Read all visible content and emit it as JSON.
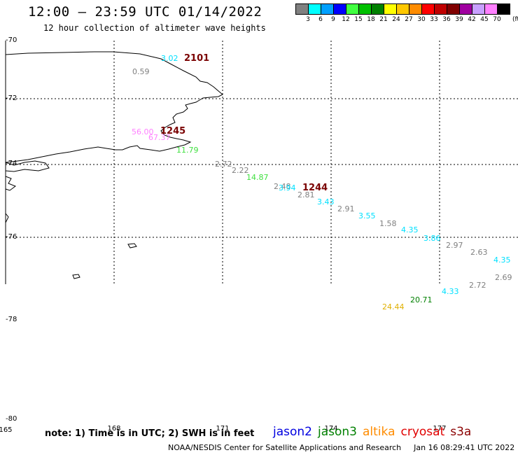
{
  "header": {
    "title": "12:00 – 23:59 UTC 01/14/2022",
    "subtitle": "12 hour collection of altimeter wave heights"
  },
  "legend": {
    "unit": "(ft)",
    "swatches": [
      {
        "color": "#808080",
        "label": "3"
      },
      {
        "color": "#00ffff",
        "label": "6"
      },
      {
        "color": "#00a0ff",
        "label": "9"
      },
      {
        "color": "#0000ff",
        "label": "12"
      },
      {
        "color": "#40ff40",
        "label": "15"
      },
      {
        "color": "#00c000",
        "label": "18"
      },
      {
        "color": "#008000",
        "label": "21"
      },
      {
        "color": "#ffff00",
        "label": "24"
      },
      {
        "color": "#ffc800",
        "label": "27"
      },
      {
        "color": "#ff8c00",
        "label": "30"
      },
      {
        "color": "#ff0000",
        "label": "33"
      },
      {
        "color": "#c00000",
        "label": "36"
      },
      {
        "color": "#800000",
        "label": "39"
      },
      {
        "color": "#a000a0",
        "label": "42"
      },
      {
        "color": "#c8a0ff",
        "label": "45"
      },
      {
        "color": "#ff80ff",
        "label": "70"
      },
      {
        "color": "#000000",
        "label": ""
      }
    ]
  },
  "axes": {
    "lat_labels": [
      "-70",
      "-72",
      "-74",
      "-76",
      "-78",
      "-80"
    ],
    "lon_labels": [
      "165",
      "168",
      "171",
      "174",
      "177"
    ]
  },
  "time_markers": [
    "2101",
    "1245",
    "1244"
  ],
  "observations": [
    {
      "value": "3.02",
      "color": "#00e0ff"
    },
    {
      "value": "0.59",
      "color": "#808080"
    },
    {
      "value": "56.00",
      "color": "#ff80ff"
    },
    {
      "value": "67.37",
      "color": "#ff80ff"
    },
    {
      "value": "11.79",
      "color": "#40e040"
    },
    {
      "value": "2.72",
      "color": "#808080"
    },
    {
      "value": "2.22",
      "color": "#808080"
    },
    {
      "value": "14.87",
      "color": "#40e040"
    },
    {
      "value": "2.48",
      "color": "#808080"
    },
    {
      "value": "3.94",
      "color": "#00e0ff"
    },
    {
      "value": "2.81",
      "color": "#808080"
    },
    {
      "value": "3.43",
      "color": "#00e0ff"
    },
    {
      "value": "2.91",
      "color": "#808080"
    },
    {
      "value": "3.55",
      "color": "#00e0ff"
    },
    {
      "value": "1.58",
      "color": "#808080"
    },
    {
      "value": "4.35",
      "color": "#00e0ff"
    },
    {
      "value": "3.86",
      "color": "#00e0ff"
    },
    {
      "value": "2.97",
      "color": "#808080"
    },
    {
      "value": "2.63",
      "color": "#808080"
    },
    {
      "value": "4.35",
      "color": "#00e0ff"
    },
    {
      "value": "2.69",
      "color": "#808080"
    },
    {
      "value": "2.72",
      "color": "#808080"
    },
    {
      "value": "4.33",
      "color": "#00e0ff"
    },
    {
      "value": "20.71",
      "color": "#008000"
    },
    {
      "value": "24.44",
      "color": "#e0b000"
    }
  ],
  "footer": {
    "note": "note: 1) Time is in UTC; 2) SWH is in feet",
    "satellites": [
      {
        "name": "jason2",
        "color": "#0000e0"
      },
      {
        "name": "jason3",
        "color": "#008000"
      },
      {
        "name": "altika",
        "color": "#ff8c00"
      },
      {
        "name": "cryosat",
        "color": "#e00000"
      },
      {
        "name": "s3a",
        "color": "#8b0000"
      }
    ],
    "credit": "NOAA/NESDIS Center for Satellite Applications and Research",
    "timestamp": "Jan 16 08:29:41 UTC 2022"
  }
}
